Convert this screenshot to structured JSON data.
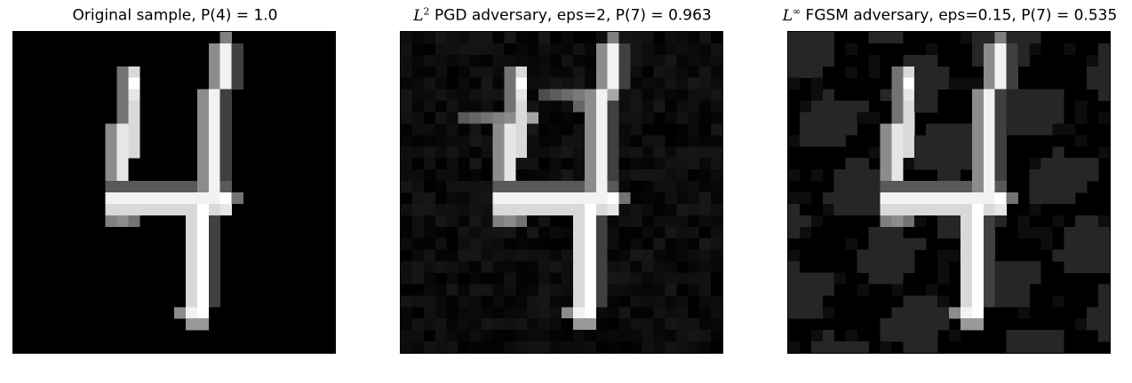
{
  "panels": [
    {
      "title_prefix": "",
      "title_sup": "",
      "title_rest": "Original sample, P(4) = 1.0"
    },
    {
      "title_prefix": "L",
      "title_sup": "2",
      "title_rest": " PGD adversary, eps=2, P(7) = 0.963"
    },
    {
      "title_prefix": "L",
      "title_sup": "∞",
      "title_rest": " FGSM adversary, eps=0.15, P(7) = 0.535"
    }
  ],
  "image": {
    "grid": 28,
    "subject": "handwritten digit 4 (MNIST)",
    "colormap": "gray"
  }
}
